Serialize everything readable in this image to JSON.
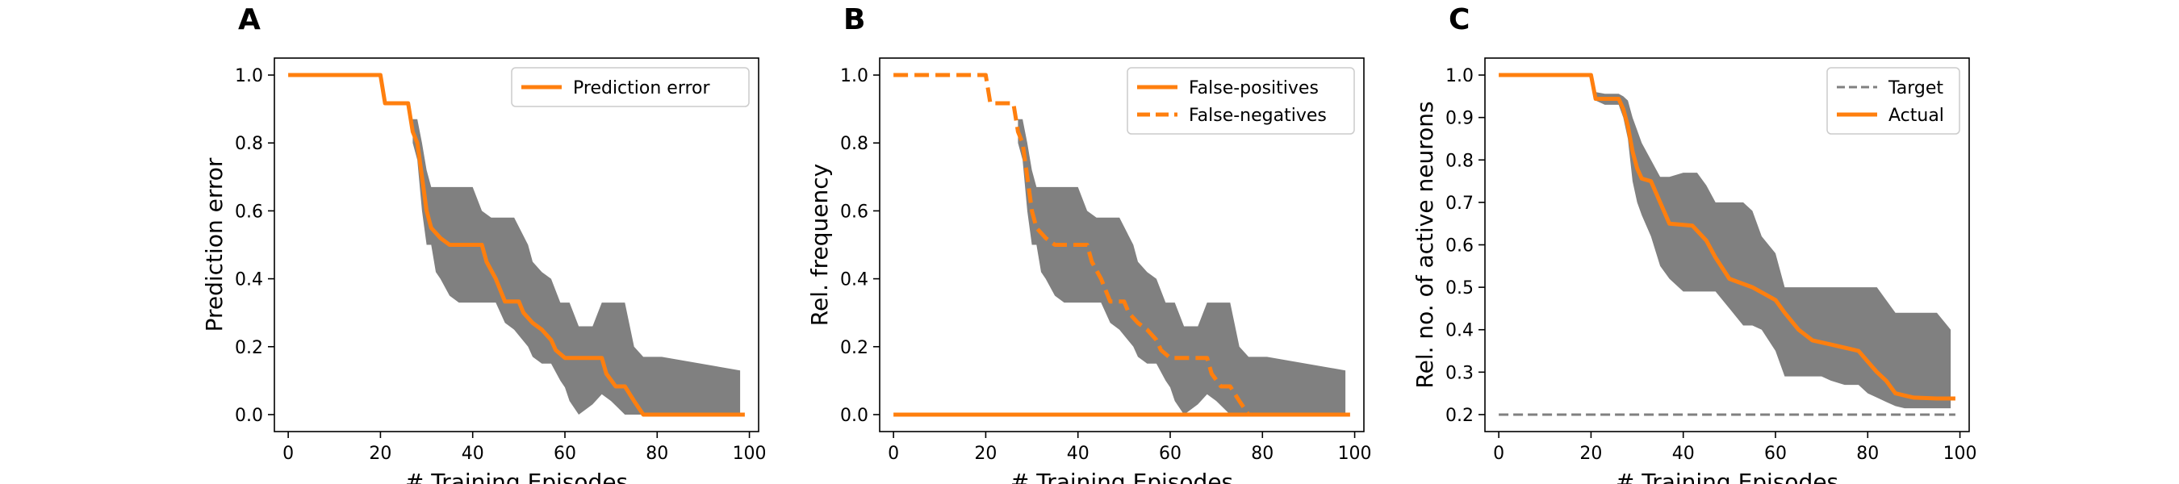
{
  "panels": [
    {
      "letter": "A",
      "ylabel": "Prediction error",
      "xlabel": "# Training Episodes"
    },
    {
      "letter": "B",
      "ylabel": "Rel. frequency",
      "xlabel": "# Training Episodes"
    },
    {
      "letter": "C",
      "ylabel": "Rel. no. of active neurons",
      "xlabel": "# Training Episodes"
    }
  ],
  "colors": {
    "accent": "#ff7f0e",
    "band": "#808080",
    "target": "#808080"
  },
  "chart_data": [
    {
      "type": "line",
      "title": "",
      "xlabel": "# Training Episodes",
      "ylabel": "Prediction error",
      "xlim": [
        -3,
        102
      ],
      "ylim": [
        -0.05,
        1.05
      ],
      "xticks": [
        0,
        20,
        40,
        60,
        80,
        100
      ],
      "yticks": [
        0.0,
        0.2,
        0.4,
        0.6,
        0.8,
        1.0
      ],
      "legend": {
        "position": "top-right"
      },
      "series": [
        {
          "name": "Prediction error",
          "style": "solid",
          "x": [
            0,
            20,
            21,
            26,
            27,
            28,
            29,
            30,
            31,
            33,
            35,
            37,
            42,
            43,
            45,
            47,
            50,
            51,
            53,
            55,
            57,
            58,
            60,
            62,
            68,
            69,
            71,
            73,
            75,
            77,
            78,
            99
          ],
          "y": [
            1.0,
            1.0,
            0.917,
            0.917,
            0.833,
            0.8,
            0.7,
            0.6,
            0.55,
            0.52,
            0.5,
            0.5,
            0.5,
            0.45,
            0.4,
            0.333,
            0.333,
            0.3,
            0.27,
            0.25,
            0.22,
            0.19,
            0.167,
            0.167,
            0.167,
            0.12,
            0.083,
            0.083,
            0.04,
            0.0,
            0.0,
            0.0
          ]
        }
      ],
      "band": {
        "x": [
          27,
          28,
          29,
          30,
          31,
          32,
          33,
          35,
          37,
          40,
          42,
          44,
          45,
          47,
          49,
          52,
          53,
          55,
          57,
          59,
          60,
          61,
          63,
          66,
          68,
          70,
          73,
          75,
          77,
          79,
          81,
          98
        ],
        "upper": [
          0.87,
          0.87,
          0.8,
          0.72,
          0.67,
          0.67,
          0.67,
          0.67,
          0.67,
          0.67,
          0.6,
          0.58,
          0.58,
          0.58,
          0.58,
          0.5,
          0.45,
          0.42,
          0.4,
          0.33,
          0.33,
          0.33,
          0.26,
          0.26,
          0.33,
          0.33,
          0.33,
          0.2,
          0.17,
          0.17,
          0.17,
          0.13
        ],
        "lower": [
          0.8,
          0.75,
          0.6,
          0.5,
          0.5,
          0.42,
          0.4,
          0.35,
          0.33,
          0.33,
          0.33,
          0.33,
          0.33,
          0.27,
          0.25,
          0.2,
          0.17,
          0.15,
          0.15,
          0.1,
          0.08,
          0.04,
          0.0,
          0.03,
          0.06,
          0.04,
          0.0,
          0.0,
          0.0,
          0.0,
          0.0,
          0.0
        ]
      }
    },
    {
      "type": "line",
      "title": "",
      "xlabel": "# Training Episodes",
      "ylabel": "Rel. frequency",
      "xlim": [
        -3,
        102
      ],
      "ylim": [
        -0.05,
        1.05
      ],
      "xticks": [
        0,
        20,
        40,
        60,
        80,
        100
      ],
      "yticks": [
        0.0,
        0.2,
        0.4,
        0.6,
        0.8,
        1.0
      ],
      "legend": {
        "position": "top-right"
      },
      "series": [
        {
          "name": "False-positives",
          "style": "solid",
          "x": [
            0,
            99
          ],
          "y": [
            0.0,
            0.0
          ]
        },
        {
          "name": "False-negatives",
          "style": "dashed",
          "x": [
            0,
            20,
            21,
            26,
            27,
            28,
            29,
            30,
            31,
            33,
            35,
            37,
            42,
            43,
            45,
            47,
            50,
            51,
            53,
            55,
            57,
            58,
            60,
            62,
            68,
            69,
            71,
            73,
            75,
            77,
            78
          ],
          "y": [
            1.0,
            1.0,
            0.917,
            0.917,
            0.833,
            0.8,
            0.7,
            0.6,
            0.55,
            0.52,
            0.5,
            0.5,
            0.5,
            0.45,
            0.4,
            0.333,
            0.333,
            0.3,
            0.27,
            0.25,
            0.22,
            0.19,
            0.167,
            0.167,
            0.167,
            0.12,
            0.083,
            0.083,
            0.04,
            0.0,
            0.0
          ]
        }
      ],
      "band": {
        "x": [
          27,
          28,
          29,
          30,
          31,
          32,
          33,
          35,
          37,
          40,
          42,
          44,
          45,
          47,
          49,
          52,
          53,
          55,
          57,
          59,
          60,
          61,
          63,
          66,
          68,
          70,
          73,
          75,
          77,
          79,
          81,
          98
        ],
        "upper": [
          0.87,
          0.87,
          0.8,
          0.72,
          0.67,
          0.67,
          0.67,
          0.67,
          0.67,
          0.67,
          0.6,
          0.58,
          0.58,
          0.58,
          0.58,
          0.5,
          0.45,
          0.42,
          0.4,
          0.33,
          0.33,
          0.33,
          0.26,
          0.26,
          0.33,
          0.33,
          0.33,
          0.2,
          0.17,
          0.17,
          0.17,
          0.13
        ],
        "lower": [
          0.8,
          0.75,
          0.6,
          0.5,
          0.5,
          0.42,
          0.4,
          0.35,
          0.33,
          0.33,
          0.33,
          0.33,
          0.33,
          0.27,
          0.25,
          0.2,
          0.17,
          0.15,
          0.15,
          0.1,
          0.08,
          0.04,
          0.0,
          0.03,
          0.06,
          0.04,
          0.0,
          0.0,
          0.0,
          0.0,
          0.0,
          0.0
        ]
      }
    },
    {
      "type": "line",
      "title": "",
      "xlabel": "# Training Episodes",
      "ylabel": "Rel. no. of active neurons",
      "xlim": [
        -3,
        102
      ],
      "ylim": [
        0.16,
        1.04
      ],
      "xticks": [
        0,
        20,
        40,
        60,
        80,
        100
      ],
      "yticks": [
        0.2,
        0.3,
        0.4,
        0.5,
        0.6,
        0.7,
        0.8,
        0.9,
        1.0
      ],
      "legend": {
        "position": "top-right"
      },
      "series": [
        {
          "name": "Target",
          "style": "dashed",
          "x": [
            0,
            99
          ],
          "y": [
            0.2,
            0.2
          ]
        },
        {
          "name": "Actual",
          "style": "solid",
          "x": [
            0,
            20,
            21,
            26,
            27,
            28,
            29,
            30,
            31,
            33,
            35,
            37,
            42,
            45,
            47,
            50,
            55,
            60,
            62,
            65,
            68,
            72,
            78,
            80,
            82,
            84,
            86,
            88,
            90,
            95,
            99
          ],
          "y": [
            1.0,
            1.0,
            0.944,
            0.944,
            0.92,
            0.88,
            0.82,
            0.78,
            0.756,
            0.75,
            0.7,
            0.65,
            0.645,
            0.61,
            0.57,
            0.52,
            0.5,
            0.47,
            0.44,
            0.4,
            0.375,
            0.365,
            0.35,
            0.325,
            0.3,
            0.28,
            0.25,
            0.245,
            0.24,
            0.238,
            0.238
          ]
        }
      ],
      "band": {
        "x": [
          20,
          21,
          23,
          26,
          27,
          28,
          29,
          30,
          31,
          33,
          35,
          37,
          40,
          43,
          45,
          47,
          50,
          53,
          55,
          57,
          60,
          62,
          65,
          68,
          70,
          72,
          75,
          78,
          80,
          82,
          84,
          86,
          88,
          90,
          92,
          95,
          98
        ],
        "upper": [
          1.0,
          0.96,
          0.956,
          0.956,
          0.95,
          0.94,
          0.9,
          0.87,
          0.84,
          0.8,
          0.76,
          0.76,
          0.77,
          0.77,
          0.74,
          0.7,
          0.7,
          0.7,
          0.68,
          0.62,
          0.58,
          0.5,
          0.5,
          0.5,
          0.5,
          0.5,
          0.5,
          0.5,
          0.5,
          0.5,
          0.47,
          0.44,
          0.44,
          0.44,
          0.44,
          0.44,
          0.4
        ],
        "lower": [
          1.0,
          0.94,
          0.93,
          0.93,
          0.9,
          0.85,
          0.75,
          0.7,
          0.67,
          0.62,
          0.55,
          0.52,
          0.49,
          0.49,
          0.49,
          0.49,
          0.45,
          0.41,
          0.41,
          0.4,
          0.35,
          0.29,
          0.29,
          0.29,
          0.29,
          0.28,
          0.27,
          0.27,
          0.25,
          0.24,
          0.23,
          0.22,
          0.215,
          0.215,
          0.215,
          0.215,
          0.215
        ]
      }
    }
  ]
}
